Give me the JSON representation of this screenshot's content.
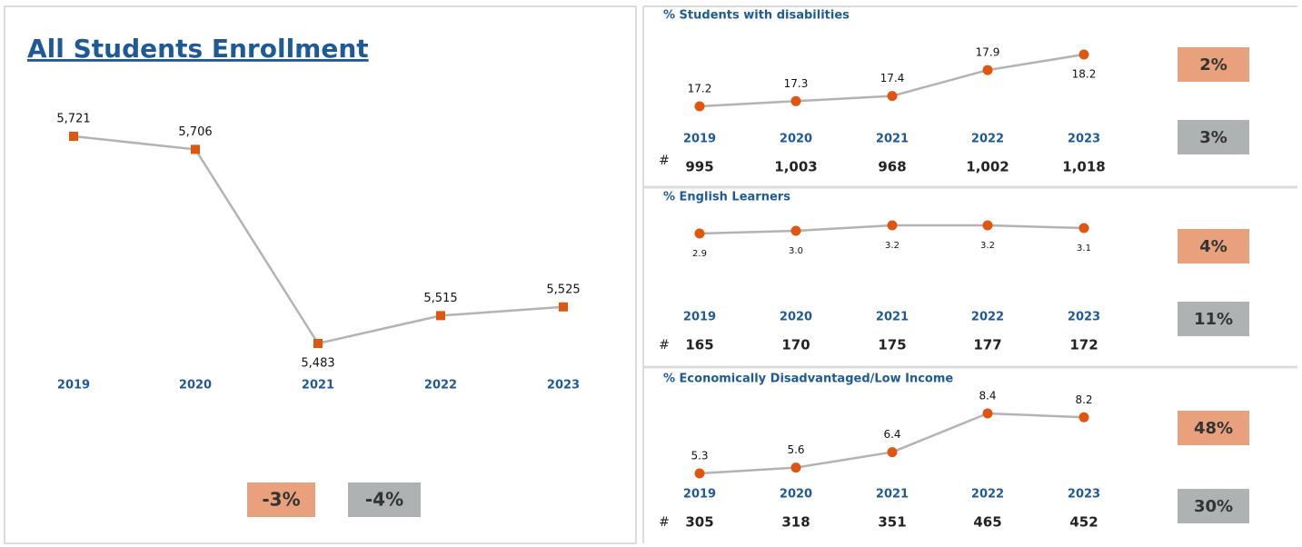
{
  "chart_data": [
    {
      "type": "line",
      "title": "All Students Enrollment",
      "marker": "square",
      "color": "#e0560f",
      "line_color": "#b3b3b3",
      "categories": [
        "2019",
        "2020",
        "2021",
        "2022",
        "2023"
      ],
      "values": [
        5721,
        5706,
        5483,
        5515,
        5525
      ],
      "value_labels": [
        "5,721",
        "5,706",
        "5,483",
        "5,515",
        "5,525"
      ],
      "badges": [
        "-3%",
        "-4%"
      ]
    },
    {
      "type": "line",
      "title": "% Students with disabilities",
      "marker": "circle",
      "color": "#e0560f",
      "line_color": "#b3b3b3",
      "categories": [
        "2019",
        "2020",
        "2021",
        "2022",
        "2023"
      ],
      "values": [
        17.2,
        17.3,
        17.4,
        17.9,
        18.2
      ],
      "count_symbol": "#",
      "counts": [
        "995",
        "1,003",
        "968",
        "1,002",
        "1,018"
      ],
      "badges": [
        "2%",
        "3%"
      ]
    },
    {
      "type": "line",
      "title": "% English Learners",
      "marker": "circle",
      "color": "#e0560f",
      "line_color": "#b3b3b3",
      "categories": [
        "2019",
        "2020",
        "2021",
        "2022",
        "2023"
      ],
      "values": [
        2.9,
        3.0,
        3.2,
        3.2,
        3.1
      ],
      "value_labels": [
        "2.9",
        "3.0",
        "3.2",
        "3.2",
        "3.1"
      ],
      "count_symbol": "#",
      "counts": [
        "165",
        "170",
        "175",
        "177",
        "172"
      ],
      "badges": [
        "4%",
        "11%"
      ]
    },
    {
      "type": "line",
      "title": "% Economically Disadvantaged/Low Income",
      "marker": "circle",
      "color": "#e0560f",
      "line_color": "#b3b3b3",
      "categories": [
        "2019",
        "2020",
        "2021",
        "2022",
        "2023"
      ],
      "values": [
        5.3,
        5.6,
        6.4,
        8.4,
        8.2
      ],
      "count_symbol": "#",
      "counts": [
        "305",
        "318",
        "351",
        "465",
        "452"
      ],
      "badges": [
        "48%",
        "30%"
      ]
    }
  ]
}
